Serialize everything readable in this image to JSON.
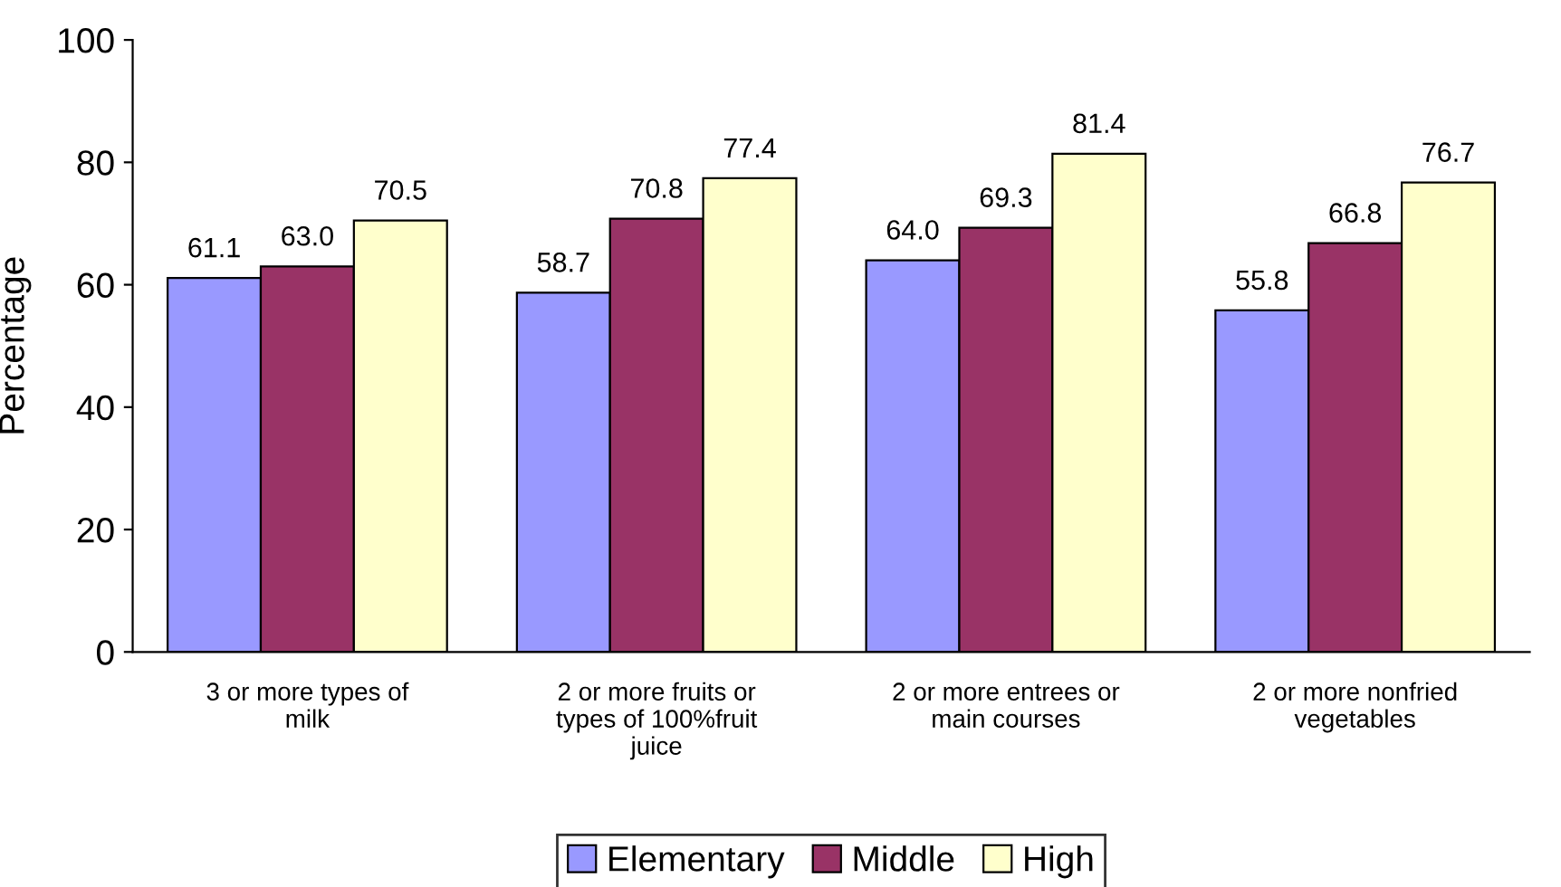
{
  "chart_data": {
    "type": "bar",
    "ylabel": "Percentage",
    "categories": [
      "3 or more types of\nmilk",
      "2 or more fruits or\ntypes of 100%fruit\njuice",
      "2 or more entrees or\nmain courses",
      "2 or more nonfried\nvegetables"
    ],
    "series": [
      {
        "name": "Elementary",
        "color": "#9999ff",
        "values": [
          61.1,
          58.7,
          64.0,
          55.8
        ],
        "value_labels": [
          "61.1",
          "58.7",
          "64.0",
          "55.8"
        ]
      },
      {
        "name": "Middle",
        "color": "#993366",
        "values": [
          63.0,
          70.8,
          69.3,
          66.8
        ],
        "value_labels": [
          "63.0",
          "70.8",
          "69.3",
          "66.8"
        ]
      },
      {
        "name": "High",
        "color": "#ffffcc",
        "values": [
          70.5,
          77.4,
          81.4,
          76.7
        ],
        "value_labels": [
          "70.5",
          "77.4",
          "81.4",
          "76.7"
        ]
      }
    ],
    "ylim": [
      0,
      100
    ],
    "yticks": [
      0,
      20,
      40,
      60,
      80,
      100
    ],
    "grid": false,
    "legend": "bottom"
  }
}
